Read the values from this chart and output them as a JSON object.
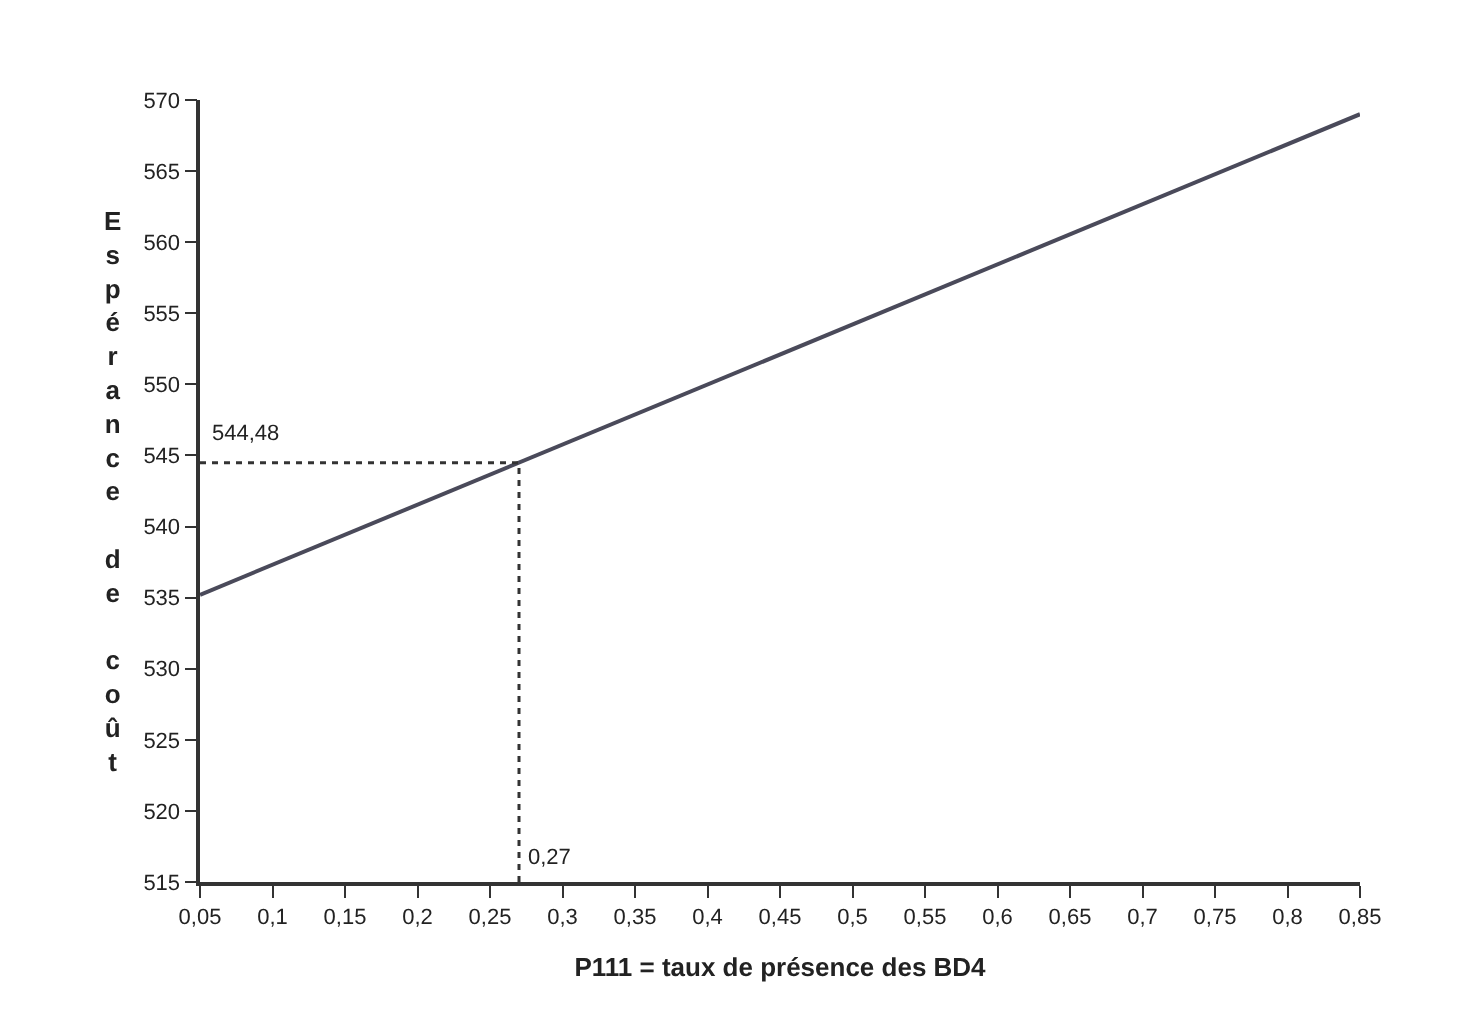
{
  "chart_data": {
    "type": "line",
    "xlabel": "P111 = taux de présence des BD4",
    "ylabel": "Espérance de coût",
    "x": [
      0.05,
      0.85
    ],
    "series": [
      {
        "color": "#4a4a5a",
        "values": [
          535.2,
          569
        ]
      }
    ],
    "xlim": [
      0.05,
      0.85
    ],
    "xticks": [
      {
        "value": 0.05,
        "label": "0,05"
      },
      {
        "value": 0.1,
        "label": "0,1"
      },
      {
        "value": 0.15,
        "label": "0,15"
      },
      {
        "value": 0.2,
        "label": "0,2"
      },
      {
        "value": 0.25,
        "label": "0,25"
      },
      {
        "value": 0.3,
        "label": "0,3"
      },
      {
        "value": 0.35,
        "label": "0,35"
      },
      {
        "value": 0.4,
        "label": "0,4"
      },
      {
        "value": 0.45,
        "label": "0,45"
      },
      {
        "value": 0.5,
        "label": "0,5"
      },
      {
        "value": 0.55,
        "label": "0,55"
      },
      {
        "value": 0.6,
        "label": "0,6"
      },
      {
        "value": 0.65,
        "label": "0,65"
      },
      {
        "value": 0.7,
        "label": "0,7"
      },
      {
        "value": 0.75,
        "label": "0,75"
      },
      {
        "value": 0.8,
        "label": "0,8"
      },
      {
        "value": 0.85,
        "label": "0,85"
      }
    ],
    "ylim": [
      515,
      570
    ],
    "yticks": [
      515,
      520,
      525,
      530,
      535,
      540,
      545,
      550,
      555,
      560,
      565,
      570
    ],
    "ref_lines": [
      {
        "axis": "y",
        "value": 544.48,
        "label": "544,48",
        "line_style": "dotted",
        "color": "#333333"
      },
      {
        "axis": "x",
        "value": 0.27,
        "label": "0,27",
        "line_style": "dotted",
        "color": "#333333"
      }
    ],
    "marker": "none",
    "line_style": "solid"
  }
}
